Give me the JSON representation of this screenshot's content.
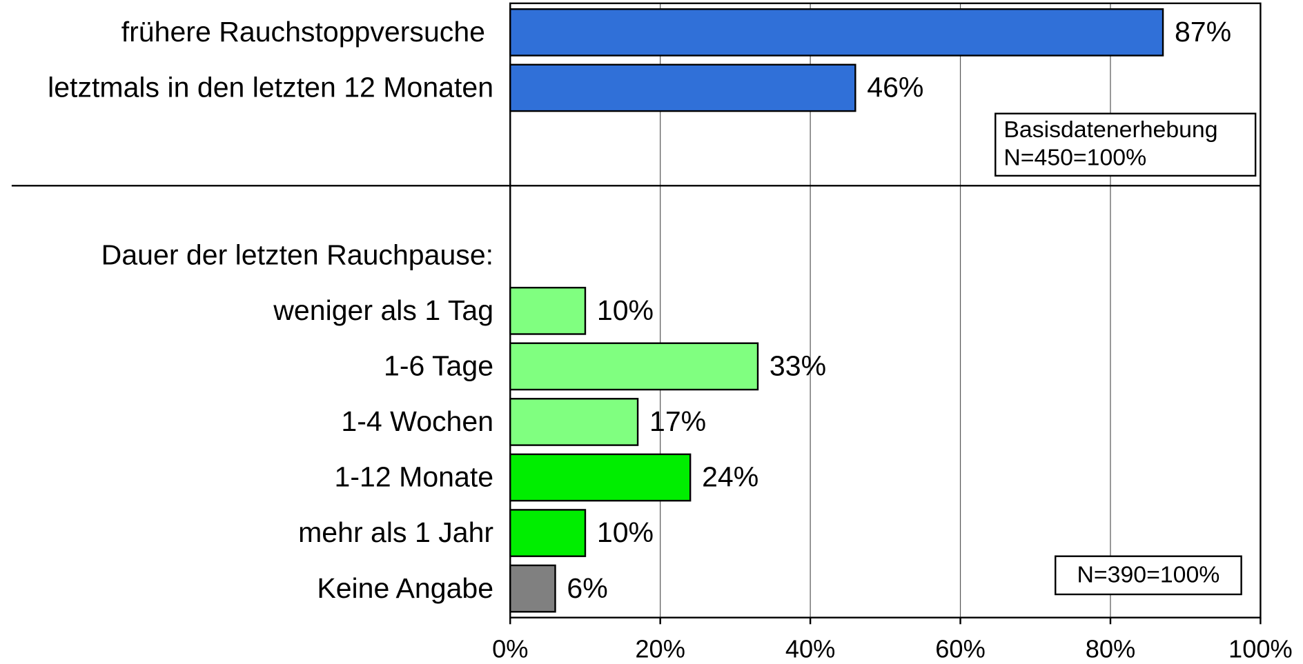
{
  "chart_data": {
    "type": "hbar",
    "categories": [
      "frühere Rauchstoppversuche",
      "letztmals in den letzten 12 Monaten",
      "Dauer der letzten Rauchpause:",
      "weniger als 1 Tag",
      "1-6 Tage",
      "1-4 Wochen",
      "1-12 Monate",
      "mehr als 1 Jahr",
      "Keine Angabe"
    ],
    "values": [
      87,
      46,
      null,
      10,
      33,
      17,
      24,
      10,
      6
    ],
    "value_labels": [
      "87%",
      "46%",
      null,
      "10%",
      "33%",
      "17%",
      "24%",
      "10%",
      "6%"
    ],
    "colors": [
      "#3070d8",
      "#3070d8",
      null,
      "#80ff80",
      "#80ff80",
      "#80ff80",
      "#00ee00",
      "#00ee00",
      "#808080"
    ],
    "xlim": [
      0,
      100
    ],
    "xticks": [
      {
        "value": 0,
        "label": "0%"
      },
      {
        "value": 20,
        "label": "20%"
      },
      {
        "value": 40,
        "label": "40%"
      },
      {
        "value": 60,
        "label": "60%"
      },
      {
        "value": 80,
        "label": "80%"
      },
      {
        "value": 100,
        "label": "100%"
      }
    ],
    "grid": true,
    "annotations": [
      [
        "Basisdatenerhebung",
        "N=450=100%"
      ],
      [
        "N=390=100%"
      ]
    ]
  }
}
